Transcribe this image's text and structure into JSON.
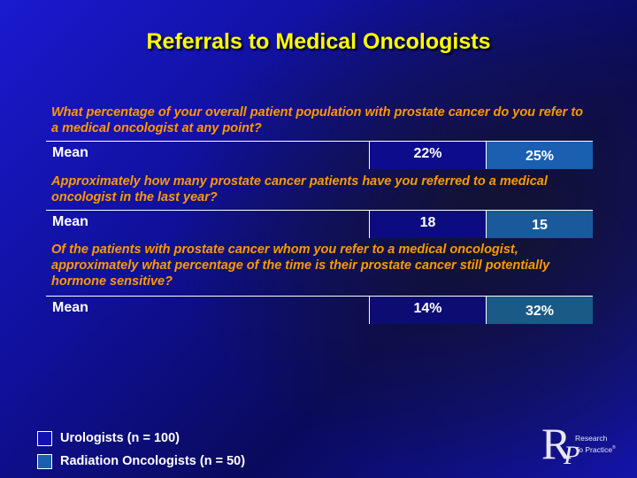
{
  "title": "Referrals to Medical Oncologists",
  "rows": [
    {
      "question": "What percentage of your overall patient population with prostate cancer do you refer to a medical oncologist at any point?",
      "label": "Mean",
      "urologists": "22%",
      "radiation_oncologists": "25%"
    },
    {
      "question": "Approximately how many prostate cancer patients have you referred to a medical oncologist in the last year?",
      "label": "Mean",
      "urologists": "18",
      "radiation_oncologists": "15"
    },
    {
      "question": "Of the patients with prostate cancer whom you refer to a medical oncologist, approximately what percentage of the time is their prostate cancer still potentially hormone sensitive?",
      "label": "Mean",
      "urologists": "14%",
      "radiation_oncologists": "32%"
    }
  ],
  "legend": {
    "urologists": {
      "label": "Urologists  (n = 100)",
      "color": "#1212b0"
    },
    "radiation_oncologists": {
      "label": "Radiation Oncologists  (n = 50)",
      "color": "#1a5fb0"
    }
  },
  "logo": {
    "letter_r": "R",
    "letter_p": "P",
    "line1": "Research",
    "line2": "To Practice",
    "trademark": "®"
  },
  "colors": {
    "title": "#ffff00",
    "question": "#ff9900",
    "uro_cell": "#0c0c8c",
    "rad_cell_1": "#1a5fb0",
    "rad_cell_2": "#1a5a9c",
    "rad_cell_3": "#1a5a86"
  }
}
